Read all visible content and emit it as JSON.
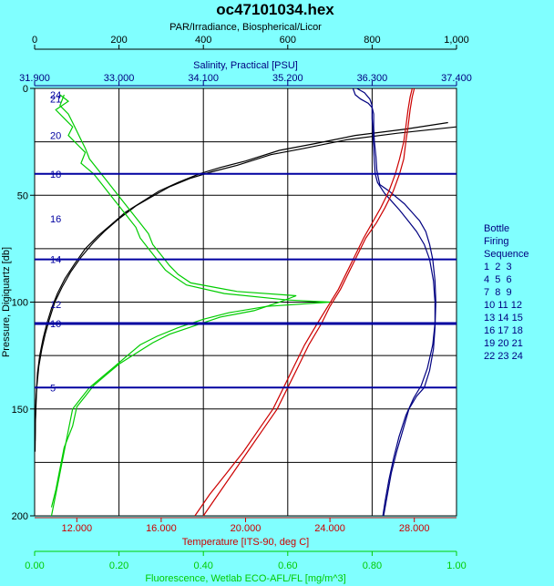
{
  "title": "oc47101034.hex",
  "colors": {
    "background": "#80ffff",
    "plot_bg": "#ffffff",
    "grid": "#000000",
    "par": "#000000",
    "salinity": "#000080",
    "temperature": "#cc0000",
    "fluorescence": "#00cc00",
    "bottle": "#0000a0"
  },
  "legend": {
    "title_lines": [
      "Bottle",
      "Firing",
      "Sequence"
    ],
    "rows": [
      "1  2  3",
      "4  5  6",
      "7  8  9",
      "10 11 12",
      "13 14 15",
      "16 17 18",
      "19 20 21",
      "22 23 24"
    ]
  },
  "chart_data": {
    "type": "line",
    "title": "oc47101034.hex",
    "grid": true,
    "y_axis": {
      "label": "Pressure, Digiquartz [db]",
      "range": [
        0,
        200
      ],
      "inverted": true,
      "ticks": [
        "0",
        "50",
        "100",
        "150",
        "200"
      ]
    },
    "x_axes": [
      {
        "id": "par",
        "position": "top-1",
        "label": "PAR/Irradiance, Biospherical/Licor",
        "range": [
          0,
          1000
        ],
        "ticks": [
          "0",
          "200",
          "400",
          "600",
          "800",
          "1,000"
        ]
      },
      {
        "id": "sal",
        "position": "top-2",
        "label": "Salinity, Practical [PSU]",
        "range": [
          31.9,
          37.4
        ],
        "ticks": [
          "31.900",
          "33.000",
          "34.100",
          "35.200",
          "36.300",
          "37.400"
        ]
      },
      {
        "id": "temp",
        "position": "bottom-1",
        "label": "Temperature [ITS-90, deg C]",
        "range": [
          10,
          30
        ],
        "ticks": [
          "12.000",
          "16.000",
          "20.000",
          "24.000",
          "28.000"
        ]
      },
      {
        "id": "fl",
        "position": "bottom-2",
        "label": "Fluorescence, Wetlab ECO-AFL/FL [mg/m^3]",
        "range": [
          0,
          1
        ],
        "ticks": [
          "0.00",
          "0.20",
          "0.40",
          "0.60",
          "0.80",
          "1.00"
        ]
      }
    ],
    "bottles": [
      {
        "label": "24",
        "pressure": 3
      },
      {
        "label": "21",
        "pressure": 5
      },
      {
        "label": "20",
        "pressure": 22
      },
      {
        "label": "18",
        "pressure": 40
      },
      {
        "label": "16",
        "pressure": 61
      },
      {
        "label": "14",
        "pressure": 80
      },
      {
        "label": "12",
        "pressure": 101
      },
      {
        "label": "10",
        "pressure": 110
      },
      {
        "label": "5",
        "pressure": 140
      }
    ],
    "series": [
      {
        "name": "PAR",
        "axis": "par",
        "points": [
          [
            1000,
            18
          ],
          [
            860,
            21
          ],
          [
            740,
            24
          ],
          [
            640,
            28
          ],
          [
            560,
            31
          ],
          [
            480,
            36
          ],
          [
            420,
            39
          ],
          [
            370,
            42
          ],
          [
            320,
            46
          ],
          [
            275,
            51
          ],
          [
            240,
            55
          ],
          [
            200,
            61
          ],
          [
            165,
            67
          ],
          [
            140,
            72
          ],
          [
            110,
            79
          ],
          [
            85,
            86
          ],
          [
            65,
            93
          ],
          [
            48,
            100
          ],
          [
            35,
            108
          ],
          [
            25,
            115
          ],
          [
            17,
            122
          ],
          [
            10,
            130
          ],
          [
            5,
            140
          ],
          [
            2,
            155
          ],
          [
            1,
            170
          ]
        ]
      },
      {
        "name": "PAR",
        "axis": "par",
        "points": [
          [
            980,
            16
          ],
          [
            880,
            19
          ],
          [
            760,
            22
          ],
          [
            660,
            26
          ],
          [
            580,
            29
          ],
          [
            500,
            34
          ],
          [
            440,
            37
          ],
          [
            390,
            40
          ],
          [
            340,
            44
          ],
          [
            295,
            48
          ],
          [
            255,
            53
          ],
          [
            215,
            58
          ],
          [
            180,
            64
          ],
          [
            150,
            69
          ],
          [
            120,
            75
          ],
          [
            95,
            82
          ],
          [
            72,
            89
          ],
          [
            54,
            96
          ],
          [
            40,
            103
          ],
          [
            29,
            110
          ],
          [
            20,
            117
          ],
          [
            12,
            125
          ],
          [
            7,
            133
          ],
          [
            3,
            146
          ],
          [
            1,
            165
          ]
        ]
      },
      {
        "name": "Salinity",
        "axis": "sal",
        "points": [
          [
            36.05,
            0
          ],
          [
            36.08,
            3
          ],
          [
            36.15,
            5
          ],
          [
            36.25,
            7
          ],
          [
            36.3,
            9
          ],
          [
            36.32,
            12
          ],
          [
            36.32,
            18
          ],
          [
            36.33,
            25
          ],
          [
            36.35,
            32
          ],
          [
            36.36,
            38
          ],
          [
            36.37,
            40
          ],
          [
            36.4,
            45
          ],
          [
            36.52,
            48
          ],
          [
            36.62,
            51
          ],
          [
            36.72,
            54
          ],
          [
            36.82,
            58
          ],
          [
            36.92,
            62
          ],
          [
            37.0,
            67
          ],
          [
            37.05,
            73
          ],
          [
            37.09,
            80
          ],
          [
            37.12,
            90
          ],
          [
            37.13,
            100
          ],
          [
            37.12,
            112
          ],
          [
            37.1,
            122
          ],
          [
            37.05,
            132
          ],
          [
            36.98,
            140
          ],
          [
            36.88,
            144
          ],
          [
            36.78,
            150
          ],
          [
            36.7,
            160
          ],
          [
            36.62,
            170
          ],
          [
            36.55,
            180
          ],
          [
            36.5,
            190
          ],
          [
            36.45,
            200
          ]
        ]
      },
      {
        "name": "Salinity",
        "axis": "sal",
        "points": [
          [
            36.1,
            0
          ],
          [
            36.2,
            2
          ],
          [
            36.27,
            5
          ],
          [
            36.3,
            8
          ],
          [
            36.3,
            14
          ],
          [
            36.31,
            20
          ],
          [
            36.32,
            28
          ],
          [
            36.33,
            35
          ],
          [
            36.34,
            40
          ],
          [
            36.37,
            44
          ],
          [
            36.46,
            49
          ],
          [
            36.56,
            53
          ],
          [
            36.66,
            57
          ],
          [
            36.77,
            62
          ],
          [
            36.88,
            67
          ],
          [
            36.98,
            73
          ],
          [
            37.05,
            80
          ],
          [
            37.1,
            90
          ],
          [
            37.12,
            100
          ],
          [
            37.12,
            110
          ],
          [
            37.09,
            120
          ],
          [
            37.02,
            131
          ],
          [
            36.94,
            139
          ],
          [
            36.84,
            145
          ],
          [
            36.74,
            153
          ],
          [
            36.65,
            163
          ],
          [
            36.58,
            173
          ],
          [
            36.52,
            183
          ],
          [
            36.47,
            193
          ],
          [
            36.44,
            200
          ]
        ]
      },
      {
        "name": "Temperature",
        "axis": "temp",
        "points": [
          [
            27.9,
            0
          ],
          [
            27.8,
            4
          ],
          [
            27.7,
            10
          ],
          [
            27.6,
            18
          ],
          [
            27.5,
            25
          ],
          [
            27.3,
            33
          ],
          [
            27.1,
            40
          ],
          [
            26.8,
            48
          ],
          [
            26.4,
            56
          ],
          [
            26.0,
            63
          ],
          [
            25.6,
            70
          ],
          [
            25.2,
            78
          ],
          [
            24.8,
            86
          ],
          [
            24.4,
            94
          ],
          [
            23.9,
            102
          ],
          [
            23.4,
            110
          ],
          [
            22.8,
            120
          ],
          [
            22.3,
            130
          ],
          [
            21.8,
            140
          ],
          [
            21.3,
            150
          ],
          [
            20.6,
            160
          ],
          [
            19.9,
            170
          ],
          [
            19.1,
            180
          ],
          [
            18.3,
            190
          ],
          [
            17.6,
            200
          ]
        ]
      },
      {
        "name": "Temperature",
        "axis": "temp",
        "points": [
          [
            28.0,
            0
          ],
          [
            27.9,
            4
          ],
          [
            27.8,
            10
          ],
          [
            27.7,
            18
          ],
          [
            27.6,
            25
          ],
          [
            27.5,
            33
          ],
          [
            27.3,
            40
          ],
          [
            27.0,
            48
          ],
          [
            26.6,
            56
          ],
          [
            26.2,
            63
          ],
          [
            25.7,
            70
          ],
          [
            25.3,
            78
          ],
          [
            24.9,
            86
          ],
          [
            24.5,
            94
          ],
          [
            24.0,
            102
          ],
          [
            23.6,
            110
          ],
          [
            23.0,
            120
          ],
          [
            22.5,
            130
          ],
          [
            22.0,
            140
          ],
          [
            21.5,
            150
          ],
          [
            20.8,
            160
          ],
          [
            20.1,
            170
          ],
          [
            19.4,
            180
          ],
          [
            18.7,
            190
          ],
          [
            18.0,
            200
          ]
        ]
      },
      {
        "name": "Fluorescence",
        "axis": "fl",
        "points": [
          [
            0.06,
            3
          ],
          [
            0.08,
            6
          ],
          [
            0.05,
            10
          ],
          [
            0.07,
            14
          ],
          [
            0.09,
            18
          ],
          [
            0.08,
            22
          ],
          [
            0.1,
            26
          ],
          [
            0.12,
            30
          ],
          [
            0.11,
            35
          ],
          [
            0.14,
            40
          ],
          [
            0.16,
            45
          ],
          [
            0.18,
            50
          ],
          [
            0.2,
            55
          ],
          [
            0.22,
            60
          ],
          [
            0.24,
            65
          ],
          [
            0.25,
            70
          ],
          [
            0.27,
            75
          ],
          [
            0.29,
            80
          ],
          [
            0.31,
            85
          ],
          [
            0.33,
            88
          ],
          [
            0.36,
            92
          ],
          [
            0.45,
            96
          ],
          [
            0.6,
            99
          ],
          [
            0.7,
            100
          ],
          [
            0.55,
            102
          ],
          [
            0.46,
            105
          ],
          [
            0.4,
            108
          ],
          [
            0.34,
            112
          ],
          [
            0.29,
            116
          ],
          [
            0.25,
            120
          ],
          [
            0.22,
            125
          ],
          [
            0.19,
            130
          ],
          [
            0.16,
            135
          ],
          [
            0.13,
            140
          ],
          [
            0.11,
            145
          ],
          [
            0.09,
            150
          ],
          [
            0.08,
            160
          ],
          [
            0.07,
            170
          ],
          [
            0.06,
            180
          ],
          [
            0.05,
            190
          ],
          [
            0.04,
            200
          ]
        ]
      },
      {
        "name": "Fluorescence",
        "axis": "fl",
        "points": [
          [
            0.07,
            3
          ],
          [
            0.06,
            8
          ],
          [
            0.08,
            12
          ],
          [
            0.09,
            16
          ],
          [
            0.1,
            20
          ],
          [
            0.11,
            24
          ],
          [
            0.12,
            28
          ],
          [
            0.13,
            33
          ],
          [
            0.15,
            38
          ],
          [
            0.17,
            43
          ],
          [
            0.19,
            48
          ],
          [
            0.21,
            53
          ],
          [
            0.23,
            58
          ],
          [
            0.25,
            63
          ],
          [
            0.27,
            68
          ],
          [
            0.28,
            73
          ],
          [
            0.3,
            78
          ],
          [
            0.32,
            83
          ],
          [
            0.34,
            87
          ],
          [
            0.37,
            91
          ],
          [
            0.48,
            95
          ],
          [
            0.62,
            97
          ],
          [
            0.58,
            100
          ],
          [
            0.52,
            104
          ],
          [
            0.44,
            107
          ],
          [
            0.38,
            111
          ],
          [
            0.32,
            115
          ],
          [
            0.28,
            119
          ],
          [
            0.24,
            124
          ],
          [
            0.2,
            129
          ],
          [
            0.17,
            134
          ],
          [
            0.14,
            139
          ],
          [
            0.12,
            144
          ],
          [
            0.1,
            149
          ],
          [
            0.09,
            158
          ],
          [
            0.07,
            168
          ],
          [
            0.06,
            178
          ],
          [
            0.05,
            188
          ],
          [
            0.04,
            196
          ]
        ]
      }
    ]
  }
}
